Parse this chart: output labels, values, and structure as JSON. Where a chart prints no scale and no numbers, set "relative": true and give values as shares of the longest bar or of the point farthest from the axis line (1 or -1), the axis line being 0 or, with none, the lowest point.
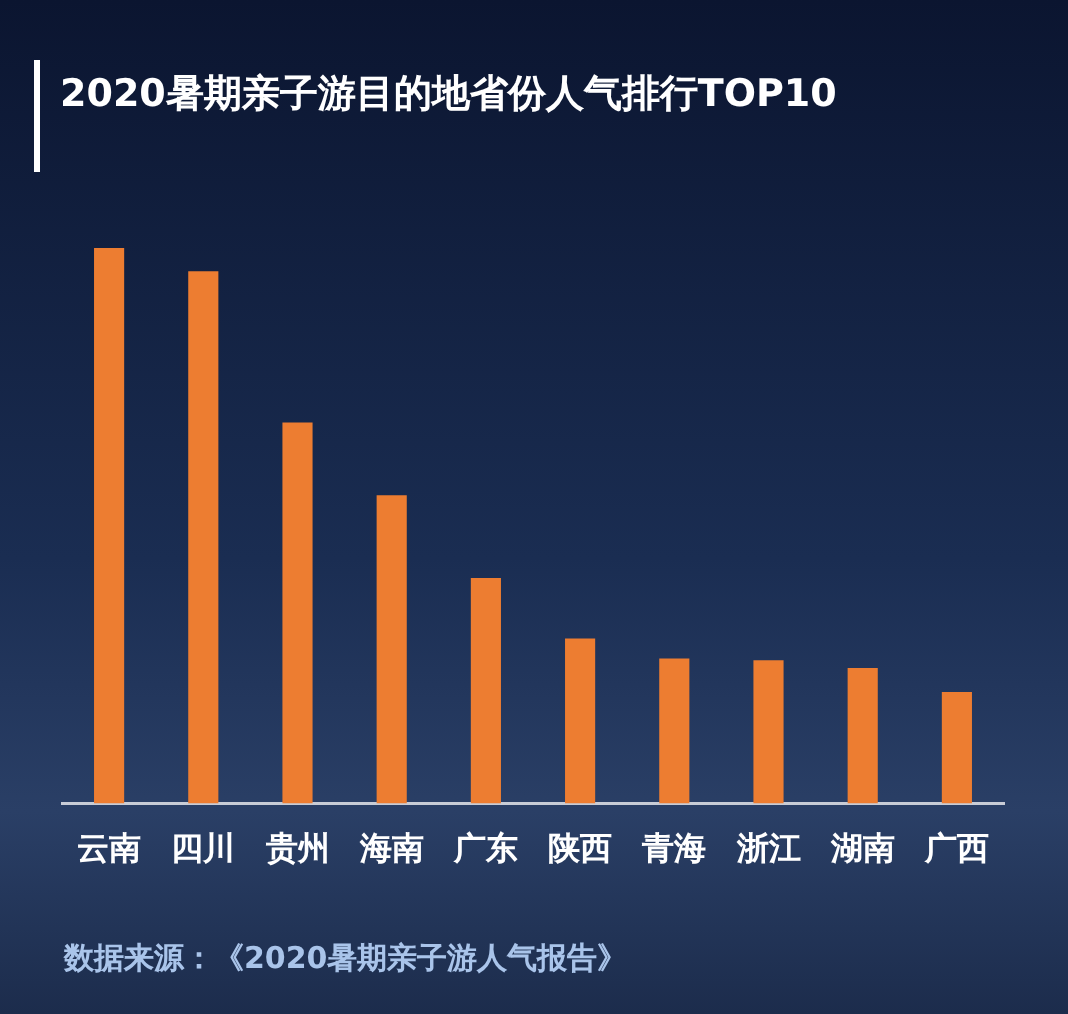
{
  "chart_data": {
    "type": "bar",
    "title": "2020暑期亲子游目的地省份人气排行TOP10",
    "categories": [
      "云南",
      "四川",
      "贵州",
      "海南",
      "广东",
      "陕西",
      "青海",
      "浙江",
      "湖南",
      "广西"
    ],
    "values": [
      1,
      0.958,
      0.686,
      0.555,
      0.406,
      0.297,
      0.261,
      0.258,
      0.244,
      0.201
    ],
    "color": "#ed7d31",
    "relative": true,
    "grid": false,
    "legend": false,
    "annotations": [
      "数据来源：《2020暑期亲子游人气报告》"
    ]
  }
}
